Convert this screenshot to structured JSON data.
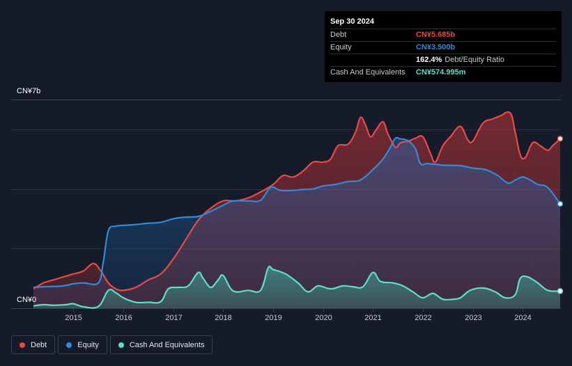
{
  "tooltip": {
    "date": "Sep 30 2024",
    "rows": [
      {
        "label": "Debt",
        "value": "CN¥5.685b",
        "color": "#e84a4a"
      },
      {
        "label": "Equity",
        "value": "CN¥3.500b",
        "color": "#2f8be0"
      },
      {
        "label": "",
        "value": "162.4%",
        "suffix": "Debt/Equity Ratio",
        "color": "#ffffff"
      },
      {
        "label": "Cash And Equivalents",
        "value": "CN¥574.995m",
        "color": "#5ee0c8"
      }
    ]
  },
  "legend": [
    {
      "label": "Debt",
      "color": "#e84a4a"
    },
    {
      "label": "Equity",
      "color": "#2f8be0"
    },
    {
      "label": "Cash And Equivalents",
      "color": "#5ee0c8"
    }
  ],
  "chart_data": {
    "type": "area",
    "title": "",
    "xlabel": "",
    "ylabel": "",
    "unit": "CN¥ billions",
    "ylim": [
      0,
      7
    ],
    "xlim": [
      2014.2,
      2024.75
    ],
    "y_tick_labels": [
      "CN¥0",
      "CN¥7b"
    ],
    "x_ticks": [
      2015,
      2016,
      2017,
      2018,
      2019,
      2020,
      2021,
      2022,
      2023,
      2024
    ],
    "x_tick_labels": [
      "2015",
      "2016",
      "2017",
      "2018",
      "2019",
      "2020",
      "2021",
      "2022",
      "2023",
      "2024"
    ],
    "grid": true,
    "series": [
      {
        "name": "Debt",
        "color": "#e84a4a",
        "points": [
          [
            2014.2,
            0.65
          ],
          [
            2014.4,
            0.85
          ],
          [
            2014.6,
            0.95
          ],
          [
            2014.8,
            1.05
          ],
          [
            2015.0,
            1.15
          ],
          [
            2015.2,
            1.25
          ],
          [
            2015.4,
            1.5
          ],
          [
            2015.55,
            1.25
          ],
          [
            2015.7,
            0.85
          ],
          [
            2015.85,
            0.65
          ],
          [
            2016.0,
            0.6
          ],
          [
            2016.25,
            0.7
          ],
          [
            2016.5,
            0.95
          ],
          [
            2016.75,
            1.15
          ],
          [
            2017.0,
            1.65
          ],
          [
            2017.25,
            2.3
          ],
          [
            2017.5,
            2.95
          ],
          [
            2017.75,
            3.35
          ],
          [
            2018.0,
            3.6
          ],
          [
            2018.25,
            3.6
          ],
          [
            2018.5,
            3.7
          ],
          [
            2018.75,
            3.9
          ],
          [
            2019.0,
            4.15
          ],
          [
            2019.2,
            4.45
          ],
          [
            2019.4,
            4.4
          ],
          [
            2019.6,
            4.6
          ],
          [
            2019.8,
            4.9
          ],
          [
            2020.0,
            4.9
          ],
          [
            2020.15,
            5.0
          ],
          [
            2020.3,
            5.45
          ],
          [
            2020.5,
            5.5
          ],
          [
            2020.65,
            5.9
          ],
          [
            2020.75,
            6.4
          ],
          [
            2020.85,
            6.15
          ],
          [
            2020.95,
            5.75
          ],
          [
            2021.05,
            5.95
          ],
          [
            2021.2,
            6.25
          ],
          [
            2021.3,
            5.85
          ],
          [
            2021.45,
            5.4
          ],
          [
            2021.55,
            5.55
          ],
          [
            2021.7,
            5.6
          ],
          [
            2021.85,
            5.7
          ],
          [
            2022.0,
            5.75
          ],
          [
            2022.15,
            5.2
          ],
          [
            2022.25,
            4.9
          ],
          [
            2022.4,
            5.45
          ],
          [
            2022.55,
            5.75
          ],
          [
            2022.75,
            6.1
          ],
          [
            2022.9,
            5.65
          ],
          [
            2023.0,
            5.6
          ],
          [
            2023.2,
            6.2
          ],
          [
            2023.4,
            6.35
          ],
          [
            2023.55,
            6.45
          ],
          [
            2023.75,
            6.55
          ],
          [
            2023.85,
            5.9
          ],
          [
            2023.95,
            5.15
          ],
          [
            2024.05,
            5.05
          ],
          [
            2024.2,
            5.55
          ],
          [
            2024.35,
            5.45
          ],
          [
            2024.5,
            5.3
          ],
          [
            2024.6,
            5.45
          ],
          [
            2024.75,
            5.685
          ]
        ]
      },
      {
        "name": "Equity",
        "color": "#2f8be0",
        "points": [
          [
            2014.2,
            0.7
          ],
          [
            2014.4,
            0.72
          ],
          [
            2014.6,
            0.73
          ],
          [
            2014.8,
            0.75
          ],
          [
            2015.0,
            0.82
          ],
          [
            2015.2,
            0.85
          ],
          [
            2015.5,
            0.85
          ],
          [
            2015.6,
            1.55
          ],
          [
            2015.7,
            2.6
          ],
          [
            2015.85,
            2.75
          ],
          [
            2016.0,
            2.78
          ],
          [
            2016.2,
            2.8
          ],
          [
            2016.5,
            2.85
          ],
          [
            2016.75,
            2.88
          ],
          [
            2017.0,
            3.0
          ],
          [
            2017.2,
            3.05
          ],
          [
            2017.5,
            3.08
          ],
          [
            2017.75,
            3.25
          ],
          [
            2018.0,
            3.45
          ],
          [
            2018.2,
            3.6
          ],
          [
            2018.5,
            3.6
          ],
          [
            2018.75,
            3.62
          ],
          [
            2018.95,
            4.05
          ],
          [
            2019.15,
            3.95
          ],
          [
            2019.4,
            3.95
          ],
          [
            2019.6,
            3.98
          ],
          [
            2019.8,
            4.0
          ],
          [
            2020.0,
            4.1
          ],
          [
            2020.25,
            4.15
          ],
          [
            2020.5,
            4.25
          ],
          [
            2020.75,
            4.3
          ],
          [
            2021.0,
            4.65
          ],
          [
            2021.2,
            5.0
          ],
          [
            2021.35,
            5.4
          ],
          [
            2021.45,
            5.7
          ],
          [
            2021.55,
            5.68
          ],
          [
            2021.7,
            5.62
          ],
          [
            2021.85,
            5.35
          ],
          [
            2021.95,
            4.85
          ],
          [
            2022.1,
            4.85
          ],
          [
            2022.4,
            4.8
          ],
          [
            2022.75,
            4.78
          ],
          [
            2023.0,
            4.7
          ],
          [
            2023.25,
            4.65
          ],
          [
            2023.5,
            4.45
          ],
          [
            2023.7,
            4.2
          ],
          [
            2023.85,
            4.3
          ],
          [
            2024.0,
            4.4
          ],
          [
            2024.15,
            4.3
          ],
          [
            2024.3,
            4.15
          ],
          [
            2024.5,
            4.05
          ],
          [
            2024.75,
            3.5
          ]
        ]
      },
      {
        "name": "Cash And Equivalents",
        "color": "#5ee0c8",
        "points": [
          [
            2014.2,
            0.08
          ],
          [
            2014.4,
            0.12
          ],
          [
            2014.6,
            0.1
          ],
          [
            2014.85,
            0.12
          ],
          [
            2015.0,
            0.15
          ],
          [
            2015.2,
            0.05
          ],
          [
            2015.5,
            0.06
          ],
          [
            2015.7,
            0.6
          ],
          [
            2015.85,
            0.52
          ],
          [
            2016.0,
            0.35
          ],
          [
            2016.25,
            0.2
          ],
          [
            2016.5,
            0.2
          ],
          [
            2016.75,
            0.22
          ],
          [
            2016.9,
            0.65
          ],
          [
            2017.1,
            0.7
          ],
          [
            2017.3,
            0.75
          ],
          [
            2017.5,
            1.2
          ],
          [
            2017.6,
            1.0
          ],
          [
            2017.75,
            0.7
          ],
          [
            2017.9,
            0.95
          ],
          [
            2018.0,
            1.1
          ],
          [
            2018.2,
            0.58
          ],
          [
            2018.5,
            0.6
          ],
          [
            2018.75,
            0.6
          ],
          [
            2018.9,
            1.35
          ],
          [
            2019.0,
            1.3
          ],
          [
            2019.25,
            1.15
          ],
          [
            2019.5,
            0.85
          ],
          [
            2019.7,
            0.55
          ],
          [
            2019.9,
            0.75
          ],
          [
            2020.15,
            0.65
          ],
          [
            2020.4,
            0.75
          ],
          [
            2020.6,
            0.72
          ],
          [
            2020.8,
            0.72
          ],
          [
            2021.0,
            1.2
          ],
          [
            2021.15,
            0.9
          ],
          [
            2021.4,
            0.85
          ],
          [
            2021.6,
            0.75
          ],
          [
            2021.8,
            0.55
          ],
          [
            2022.0,
            0.35
          ],
          [
            2022.2,
            0.5
          ],
          [
            2022.4,
            0.3
          ],
          [
            2022.6,
            0.3
          ],
          [
            2022.75,
            0.35
          ],
          [
            2022.95,
            0.6
          ],
          [
            2023.2,
            0.68
          ],
          [
            2023.45,
            0.55
          ],
          [
            2023.65,
            0.35
          ],
          [
            2023.85,
            0.45
          ],
          [
            2023.95,
            1.0
          ],
          [
            2024.1,
            1.05
          ],
          [
            2024.3,
            0.85
          ],
          [
            2024.5,
            0.6
          ],
          [
            2024.75,
            0.575
          ]
        ]
      }
    ]
  }
}
